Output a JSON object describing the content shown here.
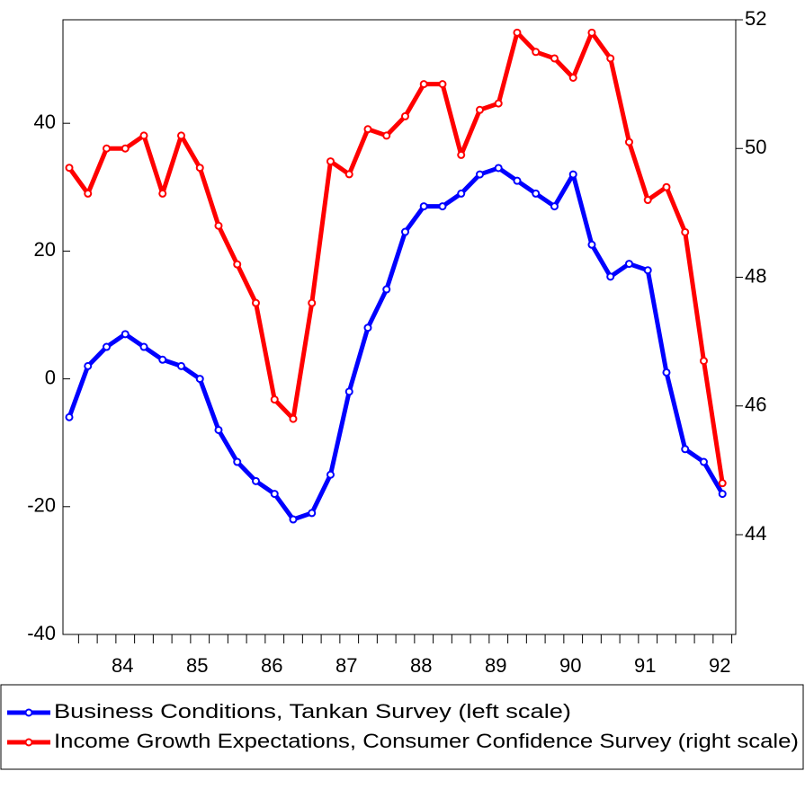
{
  "chart_data": {
    "type": "line",
    "categories": [
      null,
      null,
      null,
      "84",
      null,
      null,
      null,
      "85",
      null,
      null,
      null,
      "86",
      null,
      null,
      null,
      "87",
      null,
      null,
      null,
      "88",
      null,
      null,
      null,
      "89",
      null,
      null,
      null,
      "90",
      null,
      null,
      null,
      "91",
      null,
      null,
      null,
      "92"
    ],
    "series": [
      {
        "name": "Business Conditions, Tankan Survey (left scale)",
        "color": "#0000ff",
        "values": [
          -6,
          2,
          5,
          7,
          5,
          3,
          2,
          0,
          -8,
          -13,
          -16,
          -18,
          -22,
          -21,
          -15,
          -2,
          8,
          14,
          23,
          27,
          27,
          29,
          32,
          33,
          31,
          29,
          27,
          32,
          21,
          16,
          18,
          17,
          1,
          -11,
          -13,
          -18
        ]
      },
      {
        "name": "Income Growth Expectations, Consumer Confidence Survey (right scale)",
        "color": "#ff0000",
        "axis": "y2",
        "values": [
          49.7,
          49.3,
          50.0,
          50.0,
          50.2,
          49.3,
          50.2,
          49.7,
          48.8,
          48.2,
          47.6,
          46.1,
          45.8,
          47.6,
          49.8,
          49.6,
          50.3,
          50.2,
          50.5,
          51.0,
          51.0,
          49.9,
          50.6,
          50.7,
          51.8,
          51.5,
          51.4,
          51.1,
          51.8,
          51.4,
          50.1,
          49.2,
          49.4,
          48.7,
          46.7,
          44.8
        ]
      }
    ],
    "ylim": [
      -40,
      56.2
    ],
    "yticks": [
      -40,
      -20,
      0,
      20,
      40
    ],
    "y2lim": [
      42.45,
      52
    ],
    "y2ticks": [
      44,
      46,
      48,
      50,
      52
    ],
    "legend": "bottom"
  }
}
